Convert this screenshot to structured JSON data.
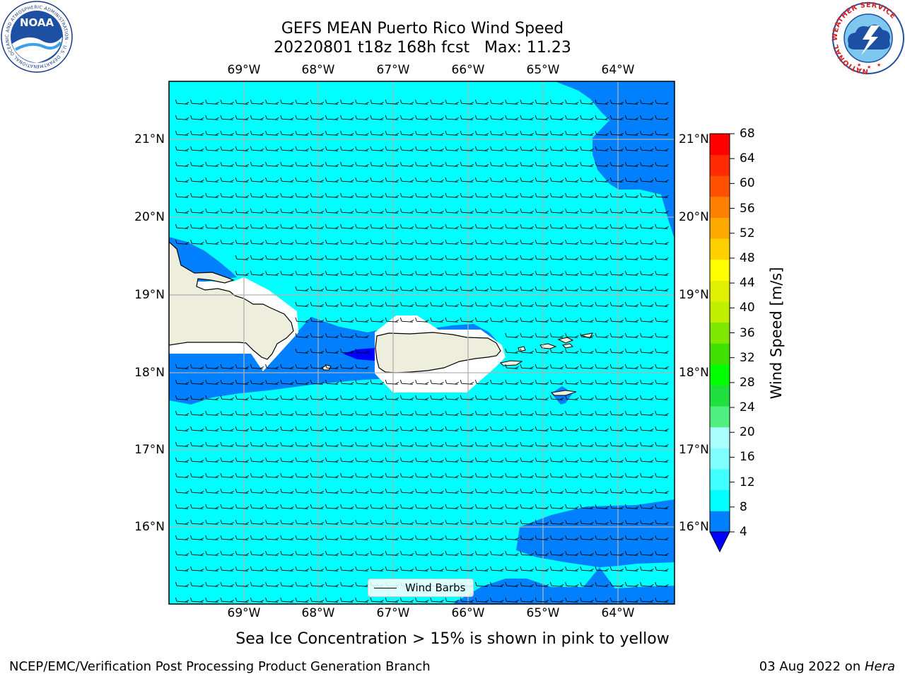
{
  "title": {
    "line1": "GEFS MEAN Puerto Rico Wind Speed",
    "line2": "20220801 t18z 168h fcst   Max: 11.23"
  },
  "map": {
    "lon_labels": [
      "69°W",
      "68°W",
      "67°W",
      "66°W",
      "65°W",
      "64°W"
    ],
    "lat_labels": [
      "21°N",
      "20°N",
      "19°N",
      "18°N",
      "17°N",
      "16°N"
    ],
    "colors": {
      "ocean_light": "#00ffff",
      "ocean_mid": "#0080ff",
      "ocean_dark": "#0000ff",
      "land": "#eeeedd",
      "grid": "#b0b0b0"
    }
  },
  "legend": {
    "label": "Wind Barbs"
  },
  "colorbar": {
    "title": "Wind Speed [m/s]",
    "ticks": [
      "4",
      "8",
      "12",
      "16",
      "20",
      "24",
      "28",
      "32",
      "36",
      "40",
      "44",
      "48",
      "52",
      "56",
      "60",
      "64",
      "68"
    ],
    "colors": [
      "#0080ff",
      "#00ffff",
      "#40ffff",
      "#80ffff",
      "#aaffff",
      "#50f080",
      "#20e040",
      "#00ff00",
      "#40e000",
      "#80e800",
      "#c0f000",
      "#e0f000",
      "#ffff00",
      "#ffd000",
      "#ffa800",
      "#ff8000",
      "#ff5000",
      "#ff2a00",
      "#ff0000"
    ],
    "under_color": "#0000ff"
  },
  "caption": "Sea Ice Concentration > 15% is shown in pink to yellow",
  "footer": {
    "left": "NCEP/EMC/Verification Post Processing Product Generation Branch",
    "date": "03 Aug 2022 on ",
    "machine": "Hera"
  },
  "logos": {
    "noaa": "NOAA",
    "noaa_ring": "NATIONAL OCEANIC AND ATMOSPHERIC ADMINISTRATION · U.S. DEPARTMENT OF COMMERCE ·",
    "nws_ring": "NATIONAL WEATHER SERVICE"
  }
}
